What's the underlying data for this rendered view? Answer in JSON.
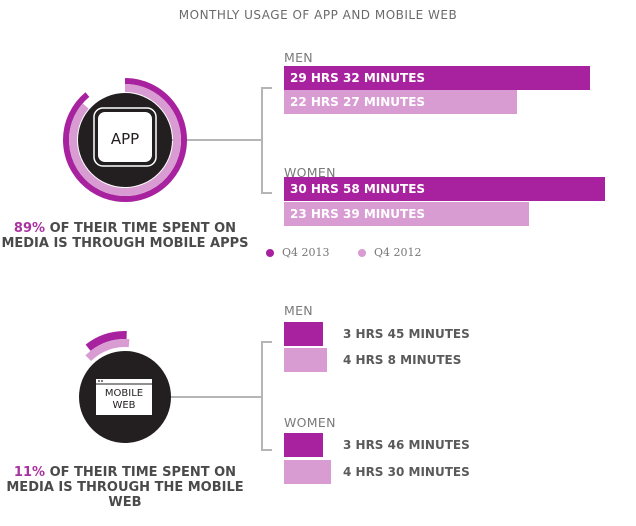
{
  "chart_data": {
    "type": "bar",
    "orientation": "horizontal",
    "title": "MONTHLY USAGE OF APP AND MOBILE WEB",
    "unit": "minutes",
    "colors": {
      "Q4 2013": "#a8229f",
      "Q4 2012": "#d89cd3"
    },
    "legend": {
      "position": "bottom",
      "entries": [
        "Q4 2013",
        "Q4 2012"
      ]
    },
    "panels": [
      {
        "icon": "APP",
        "caption_pct": "89%",
        "caption_rest": " OF THEIR TIME SPENT ON MEDIA IS THROUGH MOBILE APPS",
        "share": 0.89,
        "groups": [
          {
            "name": "MEN",
            "bars": [
              {
                "series": "Q4 2013",
                "value": 1772,
                "label": "29 HRS 32 MINUTES"
              },
              {
                "series": "Q4 2012",
                "value": 1347,
                "label": "22 HRS 27 MINUTES"
              }
            ]
          },
          {
            "name": "WOMEN",
            "bars": [
              {
                "series": "Q4 2013",
                "value": 1858,
                "label": "30 HRS 58 MINUTES"
              },
              {
                "series": "Q4 2012",
                "value": 1419,
                "label": "23 HRS 39 MINUTES"
              }
            ]
          }
        ]
      },
      {
        "icon": "MOBILE WEB",
        "caption_pct": "11%",
        "caption_rest": " OF THEIR TIME SPENT ON MEDIA IS THROUGH THE MOBILE WEB",
        "share": 0.11,
        "groups": [
          {
            "name": "MEN",
            "bars": [
              {
                "series": "Q4 2013",
                "value": 225,
                "label": "3 HRS 45 MINUTES"
              },
              {
                "series": "Q4 2012",
                "value": 248,
                "label": "4 HRS 8 MINUTES"
              }
            ]
          },
          {
            "name": "WOMEN",
            "bars": [
              {
                "series": "Q4 2013",
                "value": 226,
                "label": "3 HRS 46 MINUTES"
              },
              {
                "series": "Q4 2012",
                "value": 270,
                "label": "4 HRS 30 MINUTES"
              }
            ]
          }
        ]
      }
    ]
  }
}
